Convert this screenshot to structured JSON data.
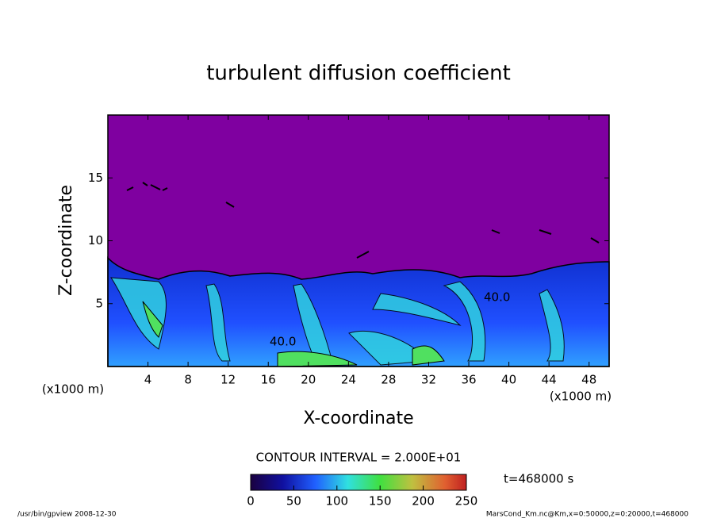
{
  "chart_data": {
    "type": "contour",
    "title": "turbulent diffusion coefficient",
    "x_label": "X-coordinate",
    "y_label": "Z-coordinate",
    "x_unit": "(x1000 m)",
    "xlim": [
      0,
      50
    ],
    "xticks": [
      4,
      8,
      12,
      16,
      20,
      24,
      28,
      32,
      36,
      40,
      44,
      48
    ],
    "ylim": [
      0,
      20
    ],
    "yticks": [
      5,
      10,
      15
    ],
    "contour_labels": [
      "40.0",
      "40.0"
    ],
    "contour_interval": "CONTOUR INTERVAL = 2.000E+01",
    "time": "t=468000 s",
    "clim": [
      0,
      250
    ],
    "cticks": [
      0,
      50,
      100,
      150,
      200,
      250
    ],
    "footer_left": "/usr/bin/gpview   2008-12-30",
    "footer_right": "MarsCond_Km.nc@Km,x=0:50000,z=0:20000,t=468000"
  }
}
